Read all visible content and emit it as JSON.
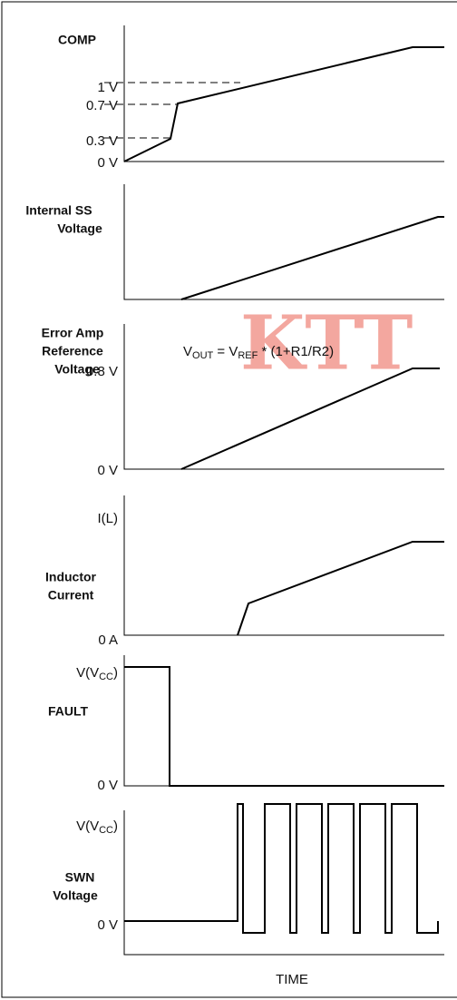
{
  "watermark": "KTT",
  "panels": [
    {
      "labels": [
        "COMP"
      ],
      "levels": [
        "1 V",
        "0.7 V",
        "0.3 V",
        "0 V"
      ]
    },
    {
      "labels": [
        "Internal SS",
        "Voltage"
      ]
    },
    {
      "labels": [
        "Error Amp",
        "Reference",
        "Voltage"
      ],
      "levels": [
        "0.8 V",
        "0 V"
      ],
      "equation": {
        "v": "V",
        "out": "OUT",
        "mid": " = V",
        "ref": "REF",
        "tail": " * (1+R1/R2)"
      }
    },
    {
      "labels": [
        "Inductor",
        "Current"
      ],
      "levels": [
        "I(L)",
        "0 A"
      ]
    },
    {
      "labels": [
        "FAULT"
      ],
      "top": {
        "a": "V(V",
        "sub": "CC",
        "b": ")"
      },
      "levels": [
        "0 V"
      ]
    },
    {
      "labels": [
        "SWN",
        "Voltage"
      ],
      "top": {
        "a": "V(V",
        "sub": "CC",
        "b": ")"
      },
      "levels": [
        "0 V"
      ]
    }
  ],
  "x_label": "TIME"
}
